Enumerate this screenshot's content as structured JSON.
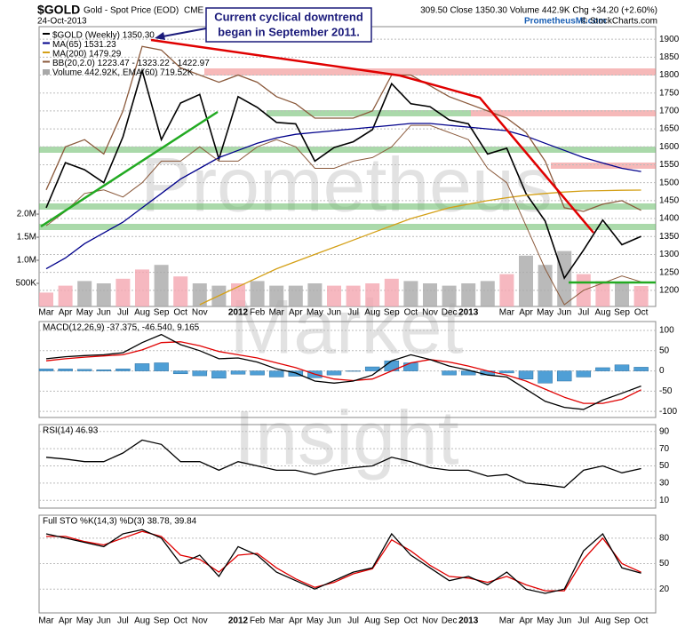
{
  "header": {
    "symbol": "$GOLD",
    "name": "Gold - Spot Price (EOD)",
    "exchange": "CME",
    "date": "24-Oct-2013",
    "quote": "309.50 Close 1350.30 Volume 442.9K Chg +34.20 (+2.60%)",
    "site": "PrometheusMI.com",
    "credit": "© StockCharts.com"
  },
  "annotation": [
    "Current cyclical downtrend",
    "began in September 2011."
  ],
  "watermark": [
    "Prometheus",
    "Market",
    "Insight"
  ],
  "chart_data": [
    {
      "type": "line",
      "categories": [
        "Mar",
        "Apr",
        "May",
        "Jun",
        "Jul",
        "Aug",
        "Sep",
        "Oct",
        "Nov",
        null,
        "2012",
        "Feb",
        "Mar",
        "Apr",
        "May",
        "Jun",
        "Jul",
        "Aug",
        "Sep",
        "Oct",
        "Nov",
        "Dec",
        "2013",
        null,
        "Mar",
        "Apr",
        "May",
        "Jun",
        "Jul",
        "Aug",
        "Sep",
        "Oct"
      ],
      "ylim": [
        1155,
        1935
      ],
      "yticks": [
        1200,
        1250,
        1300,
        1350,
        1400,
        1450,
        1500,
        1550,
        1600,
        1650,
        1700,
        1750,
        1800,
        1850,
        1900
      ],
      "y2lim": [
        0,
        6060000
      ],
      "y2ticks": [
        {
          "value": 500000,
          "label": "500K"
        },
        {
          "value": 1000000,
          "label": "1.0M"
        },
        {
          "value": 1500000,
          "label": "1.5M"
        },
        {
          "value": 2000000,
          "label": "2.0M"
        }
      ],
      "grid": true,
      "series": [
        {
          "name": "Volume 442.92K, EMA(60) 719.52K",
          "color": "#a9a9a9",
          "axis": "y2",
          "colors": [
            "#f4a6b0",
            "#f4a6b0",
            "#a9a9a9",
            "#a9a9a9",
            "#f4a6b0",
            "#f4a6b0",
            "#a9a9a9",
            "#f4a6b0",
            "#a9a9a9",
            "#a9a9a9",
            "#f4a6b0",
            "#a9a9a9",
            "#a9a9a9",
            "#a9a9a9",
            "#a9a9a9",
            "#f4a6b0",
            "#f4a6b0",
            "#f4a6b0",
            "#f4a6b0",
            "#a9a9a9",
            "#a9a9a9",
            "#a9a9a9",
            "#a9a9a9",
            "#a9a9a9",
            "#f4a6b0",
            "#a9a9a9",
            "#a9a9a9",
            "#a9a9a9",
            "#f4a6b0",
            "#f4a6b0",
            "#a9a9a9",
            "#f4a6b0"
          ],
          "values": [
            300000,
            450000,
            550000,
            500000,
            600000,
            800000,
            900000,
            650000,
            500000,
            450000,
            500000,
            550000,
            450000,
            450000,
            500000,
            450000,
            450000,
            500000,
            600000,
            550000,
            500000,
            450000,
            500000,
            550000,
            700000,
            1100000,
            900000,
            1200000,
            700000,
            550000,
            500000,
            442920
          ]
        },
        {
          "name": "$GOLD (Weekly) 1350.30",
          "color": "#000000",
          "values": [
            1430,
            1556,
            1536,
            1500,
            1628,
            1813,
            1620,
            1722,
            1746,
            1566,
            1740,
            1710,
            1668,
            1664,
            1560,
            1598,
            1614,
            1648,
            1776,
            1720,
            1712,
            1675,
            1664,
            1580,
            1596,
            1470,
            1393,
            1234,
            1312,
            1396,
            1327,
            1350.3
          ]
        },
        {
          "name": "MA(65) 1531.23",
          "color": "#00008b",
          "values": [
            1260,
            1290,
            1330,
            1360,
            1390,
            1430,
            1470,
            1510,
            1540,
            1570,
            1590,
            1610,
            1625,
            1635,
            1640,
            1645,
            1650,
            1655,
            1660,
            1665,
            1665,
            1660,
            1655,
            1650,
            1645,
            1630,
            1610,
            1590,
            1570,
            1555,
            1540,
            1531.23
          ]
        },
        {
          "name": "MA(200) 1479.29",
          "color": "#d4a017",
          "values": [
            null,
            null,
            null,
            null,
            null,
            null,
            null,
            null,
            1160,
            1185,
            1210,
            1235,
            1260,
            1280,
            1300,
            1320,
            1340,
            1360,
            1380,
            1400,
            1415,
            1430,
            1440,
            1450,
            1458,
            1465,
            1470,
            1474,
            1477,
            1478,
            1479,
            1479.29
          ]
        },
        {
          "name": "BB(20,2.0) 1223.47 - 1323.22 - 1422.97",
          "color": "#8b5a3c",
          "values": [
            1480,
            1600,
            1620,
            1580,
            1700,
            1880,
            1870,
            1820,
            1800,
            1780,
            1800,
            1780,
            1740,
            1720,
            1680,
            1680,
            1680,
            1700,
            1800,
            1800,
            1770,
            1740,
            1720,
            1700,
            1680,
            1640,
            1560,
            1430,
            1420,
            1440,
            1450,
            1422.97
          ],
          "lower": [
            1380,
            1420,
            1470,
            1480,
            1460,
            1500,
            1560,
            1560,
            1600,
            1560,
            1560,
            1600,
            1620,
            1600,
            1540,
            1540,
            1560,
            1570,
            1600,
            1660,
            1660,
            1640,
            1620,
            1540,
            1500,
            1380,
            1260,
            1160,
            1200,
            1220,
            1240,
            1223.47
          ]
        }
      ]
    },
    {
      "type": "line",
      "label": "MACD(12,26,9) -37.375, -46.540, 9.165",
      "ylim": [
        -115,
        122
      ],
      "yticks": [
        -100,
        -50,
        0,
        50,
        100
      ],
      "series": [
        {
          "color": "#4f9fd6",
          "style": "bar",
          "values": [
            5,
            5,
            4,
            3,
            5,
            18,
            20,
            -7,
            -12,
            -18,
            -8,
            -10,
            -15,
            -13,
            -17,
            -10,
            -1,
            10,
            25,
            20,
            0,
            -10,
            -10,
            -10,
            -5,
            -20,
            -30,
            -25,
            -15,
            8,
            15,
            9.165
          ]
        },
        {
          "color": "#e00000",
          "values": [
            25,
            30,
            34,
            37,
            40,
            52,
            70,
            72,
            62,
            48,
            40,
            32,
            20,
            8,
            -8,
            -20,
            -24,
            -20,
            0,
            20,
            28,
            22,
            12,
            0,
            -10,
            -25,
            -45,
            -65,
            -80,
            -80,
            -70,
            -46.54
          ]
        },
        {
          "color": "#000000",
          "values": [
            30,
            35,
            38,
            40,
            45,
            70,
            90,
            65,
            50,
            30,
            32,
            22,
            5,
            -5,
            -25,
            -30,
            -25,
            -10,
            25,
            40,
            28,
            12,
            2,
            -10,
            -15,
            -45,
            -75,
            -90,
            -95,
            -72,
            -55,
            -37.375
          ]
        }
      ]
    },
    {
      "type": "line",
      "label": "RSI(14) 46.93",
      "ylim": [
        1,
        98
      ],
      "yticks": [
        10,
        30,
        50,
        70,
        90
      ],
      "series": [
        {
          "color": "#000000",
          "values": [
            60,
            58,
            55,
            55,
            65,
            80,
            75,
            55,
            55,
            45,
            55,
            50,
            45,
            45,
            40,
            45,
            48,
            50,
            60,
            55,
            48,
            45,
            45,
            38,
            40,
            30,
            28,
            25,
            45,
            50,
            42,
            46.93
          ]
        }
      ]
    },
    {
      "type": "line",
      "label": "Full STO %K(14,3) %D(3) 38.78, 39.84",
      "ylim": [
        -8,
        107
      ],
      "yticks": [
        20,
        50,
        80
      ],
      "series": [
        {
          "color": "#e00000",
          "values": [
            82,
            82,
            76,
            72,
            80,
            88,
            82,
            60,
            55,
            40,
            60,
            62,
            45,
            32,
            22,
            28,
            38,
            44,
            78,
            65,
            48,
            35,
            33,
            28,
            35,
            25,
            18,
            18,
            55,
            80,
            50,
            39.84
          ]
        },
        {
          "color": "#000000",
          "values": [
            85,
            80,
            75,
            70,
            85,
            90,
            80,
            50,
            60,
            35,
            70,
            60,
            40,
            30,
            20,
            30,
            40,
            45,
            85,
            60,
            45,
            30,
            35,
            25,
            40,
            20,
            15,
            20,
            65,
            85,
            45,
            38.78
          ]
        }
      ]
    }
  ]
}
